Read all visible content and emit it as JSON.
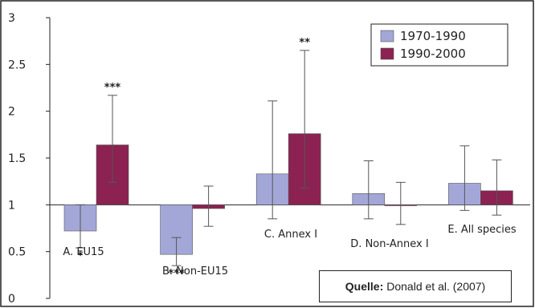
{
  "chart_data": {
    "type": "bar",
    "title": "",
    "xlabel": "",
    "ylabel": "",
    "ylim": [
      0,
      3
    ],
    "yticks": [
      "0",
      "0.5",
      "1",
      "1.5",
      "2",
      "2.5",
      "3"
    ],
    "baseline": 1,
    "grid": false,
    "legend_position": "top-right",
    "categories": [
      "A. EU15",
      "B. Non-EU15",
      "C. Annex I",
      "D. Non-Annex I",
      "E. All species"
    ],
    "series": [
      {
        "name": "1970-1990",
        "color": "#a3a7d8",
        "values": [
          0.72,
          0.47,
          1.33,
          1.12,
          1.23
        ],
        "err_low": [
          0.54,
          0.35,
          0.85,
          0.85,
          0.94
        ],
        "err_high": [
          1.0,
          0.65,
          2.11,
          1.47,
          1.63
        ],
        "sig": [
          "*",
          "***",
          "",
          "",
          ""
        ]
      },
      {
        "name": "1990-2000",
        "color": "#8b2252",
        "values": [
          1.64,
          0.96,
          1.76,
          0.99,
          1.15
        ],
        "err_low": [
          1.24,
          0.77,
          1.18,
          0.79,
          0.89
        ],
        "err_high": [
          2.17,
          1.2,
          2.65,
          1.24,
          1.48
        ],
        "sig": [
          "***",
          "",
          "**",
          "",
          ""
        ]
      }
    ]
  },
  "source": {
    "label": "Quelle:",
    "text": "Donald et al. (2007)"
  }
}
